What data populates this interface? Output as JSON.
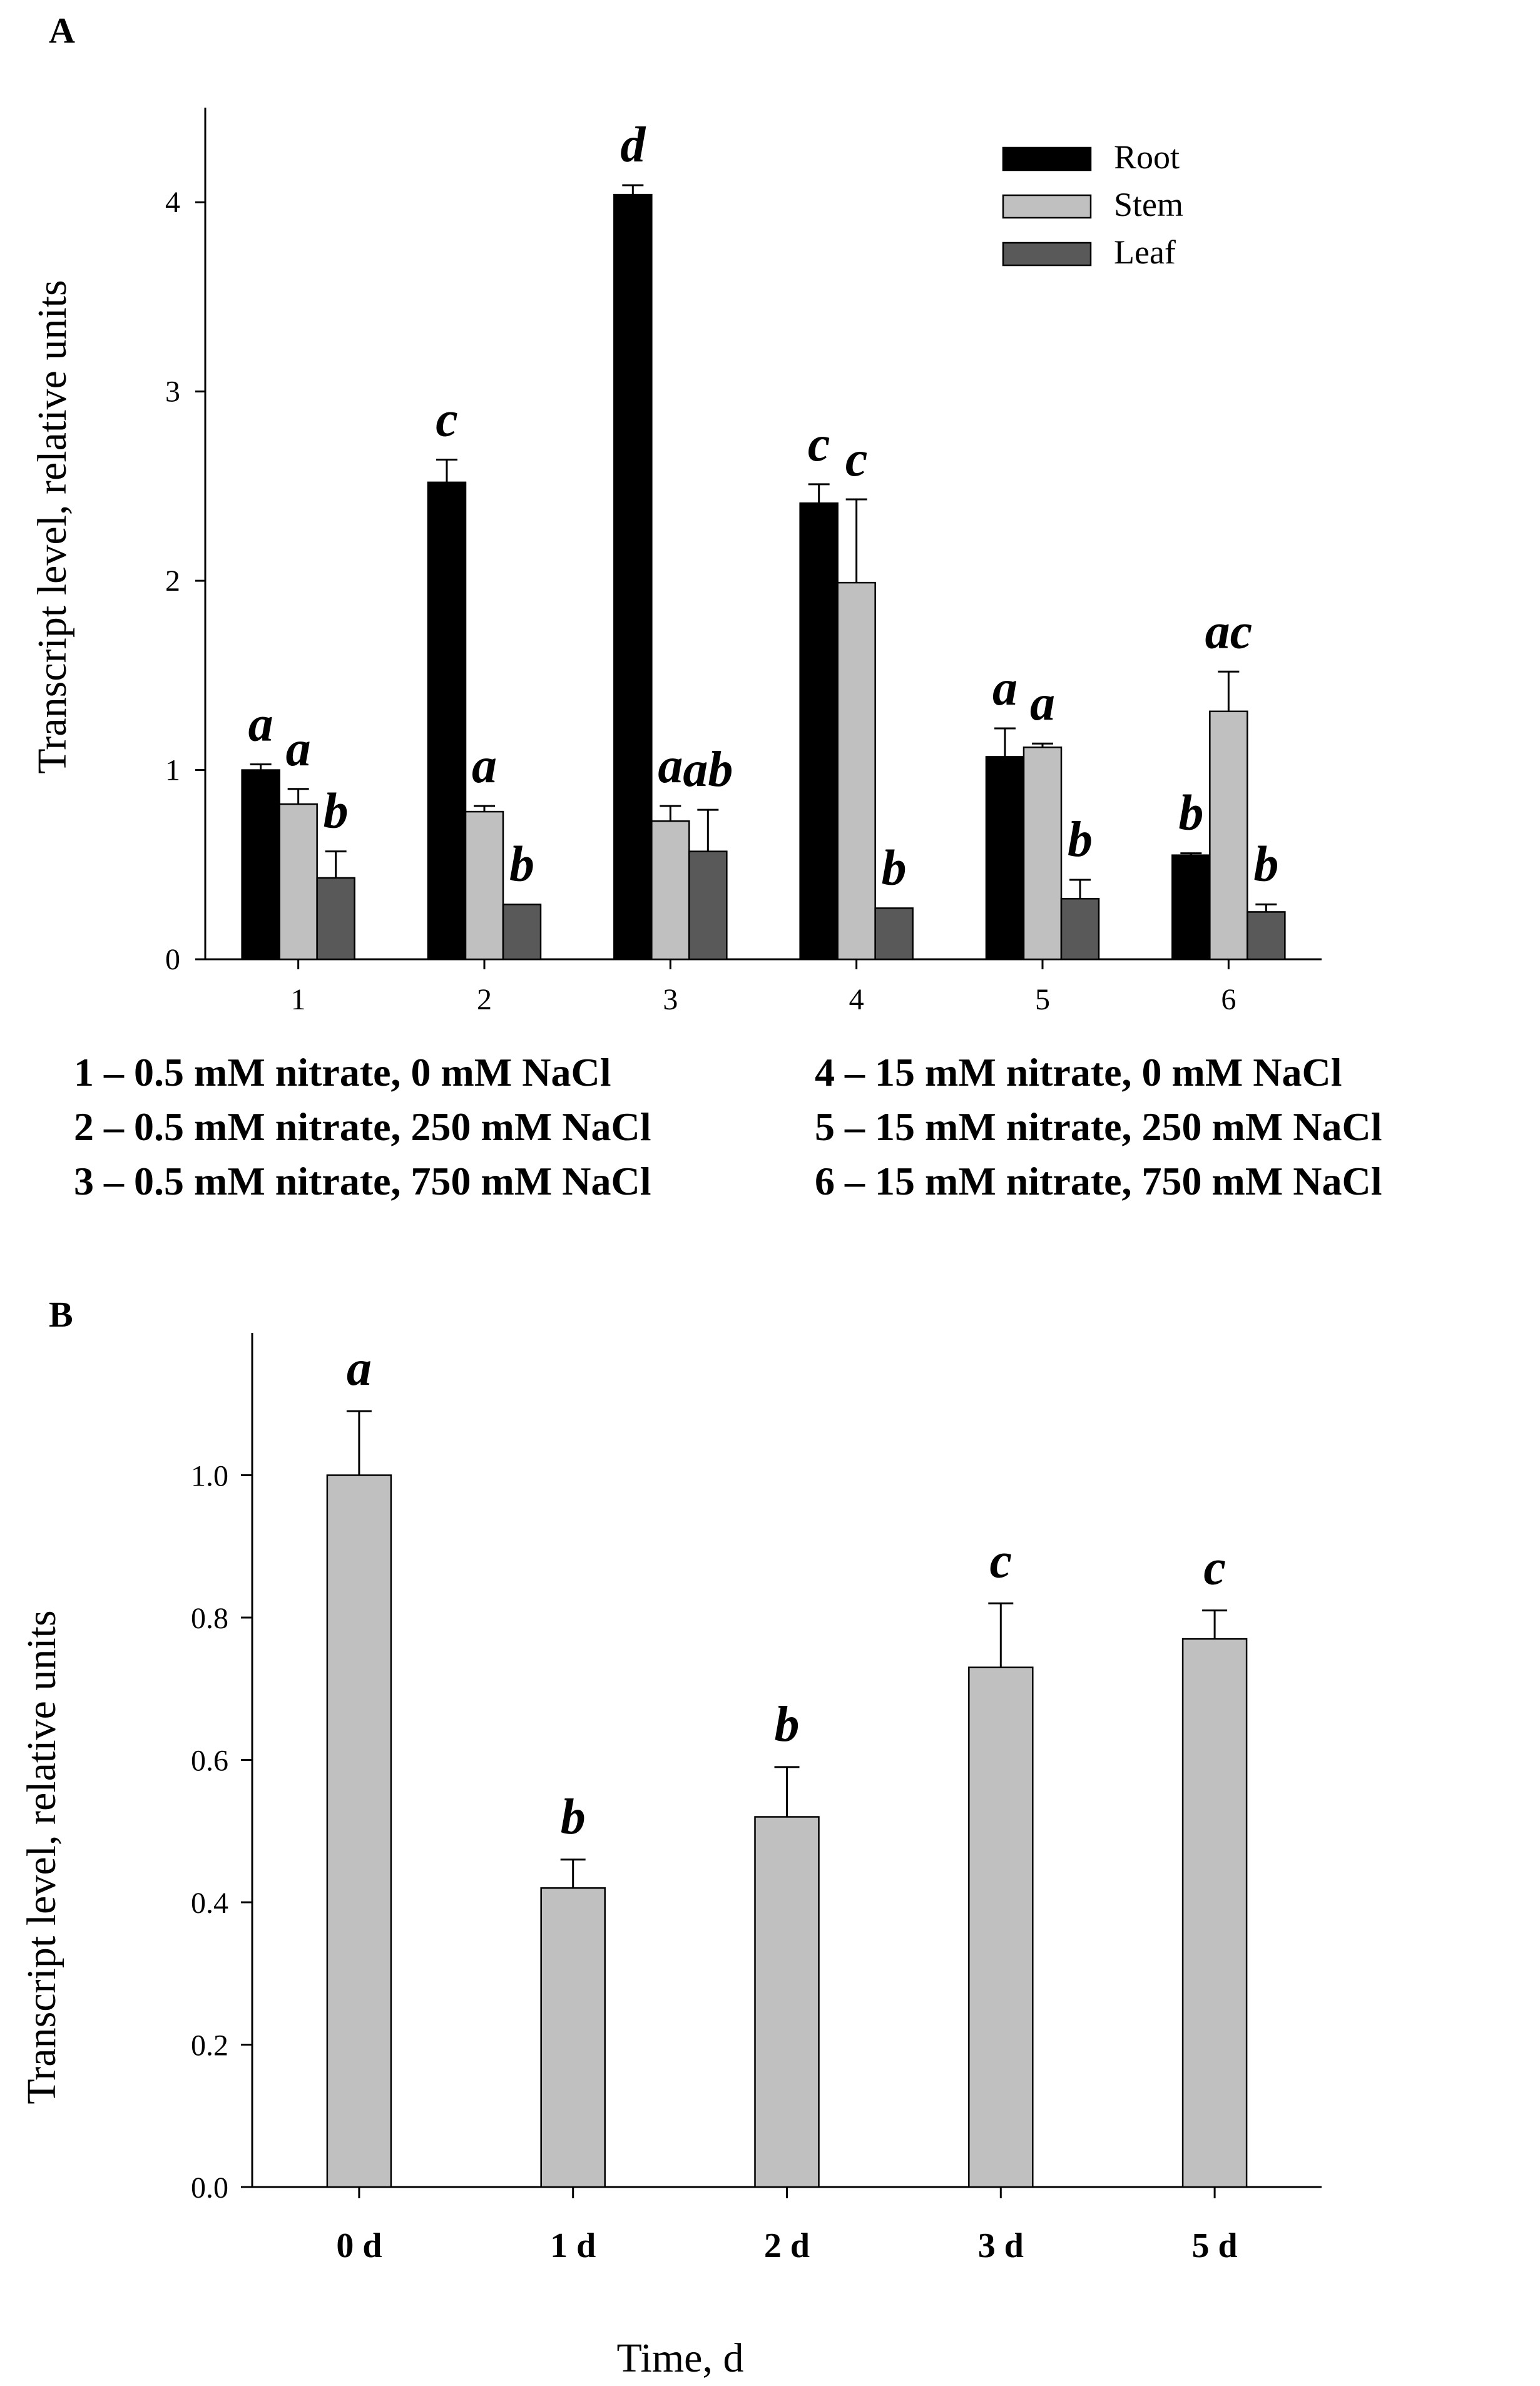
{
  "chart_data": [
    {
      "panel": "A",
      "type": "bar",
      "ylabel": "Transcript level, relative units",
      "xlabel": "",
      "ylim": [
        0,
        4.5
      ],
      "yticks": [
        "0",
        "1",
        "2",
        "3",
        "4"
      ],
      "categories": [
        "1",
        "2",
        "3",
        "4",
        "5",
        "6"
      ],
      "legend_position": "top-right",
      "series": [
        {
          "name": "Root",
          "color": "#000000",
          "values": [
            1.0,
            2.52,
            4.04,
            2.41,
            1.07,
            0.55
          ],
          "errors": [
            0.03,
            0.12,
            0.05,
            0.1,
            0.15,
            0.01
          ],
          "labels": [
            "a",
            "c",
            "d",
            "c",
            "a",
            "b"
          ]
        },
        {
          "name": "Stem",
          "color": "#c0c0c0",
          "values": [
            0.82,
            0.78,
            0.73,
            1.99,
            1.12,
            1.31
          ],
          "errors": [
            0.08,
            0.03,
            0.08,
            0.44,
            0.02,
            0.21
          ],
          "labels": [
            "a",
            "a",
            "a",
            "c",
            "a",
            "ac"
          ]
        },
        {
          "name": "Leaf",
          "color": "#595959",
          "values": [
            0.43,
            0.29,
            0.57,
            0.27,
            0.32,
            0.25
          ],
          "errors": [
            0.14,
            0.0,
            0.22,
            0.0,
            0.1,
            0.04
          ],
          "labels": [
            "b",
            "b",
            "ab",
            "b",
            "b",
            "b"
          ]
        }
      ],
      "notes": [
        "1 – 0.5 mM nitrate, 0 mM NaCl",
        "2 – 0.5 mM nitrate, 250 mM NaCl",
        "3 – 0.5 mM nitrate, 750 mM NaCl",
        "4 – 15 mM nitrate, 0 mM NaCl",
        "5 – 15 mM nitrate, 250 mM NaCl",
        "6 – 15 mM nitrate, 750 mM NaCl"
      ]
    },
    {
      "panel": "B",
      "type": "bar",
      "ylabel": "Transcript level, relative units",
      "xlabel": "Time, d",
      "ylim": [
        0,
        1.2
      ],
      "yticks": [
        "0.0",
        "0.2",
        "0.4",
        "0.6",
        "0.8",
        "1.0"
      ],
      "categories": [
        "0 d",
        "1 d",
        "2 d",
        "3 d",
        "5 d"
      ],
      "series": [
        {
          "name": "",
          "color": "#c0c0c0",
          "values": [
            1.0,
            0.42,
            0.52,
            0.73,
            0.77
          ],
          "errors": [
            0.09,
            0.04,
            0.07,
            0.09,
            0.04
          ],
          "labels": [
            "a",
            "b",
            "b",
            "c",
            "c"
          ]
        }
      ]
    }
  ]
}
